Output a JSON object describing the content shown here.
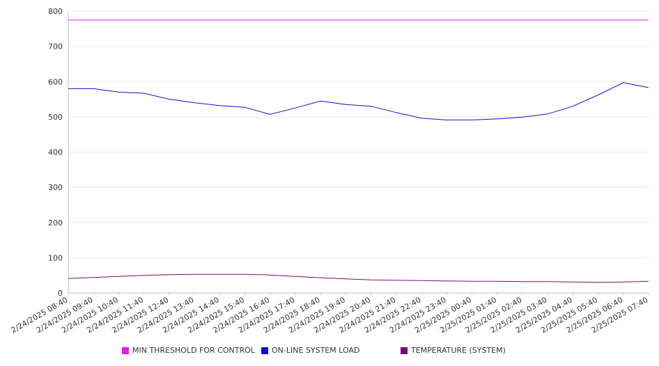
{
  "chart_data": {
    "type": "line",
    "title": "",
    "xlabel": "",
    "ylabel": "",
    "ylim": [
      0,
      800
    ],
    "yticks": [
      "0",
      "100",
      "200",
      "300",
      "400",
      "500",
      "600",
      "700",
      "800"
    ],
    "grid": true,
    "legend_position": "bottom",
    "x": [
      "2/24/2025 08:40",
      "2/24/2025 09:40",
      "2/24/2025 10:40",
      "2/24/2025 11:40",
      "2/24/2025 12:40",
      "2/24/2025 13:40",
      "2/24/2025 14:40",
      "2/24/2025 15:40",
      "2/24/2025 16:40",
      "2/24/2025 17:40",
      "2/24/2025 18:40",
      "2/24/2025 19:40",
      "2/24/2025 20:40",
      "2/24/2025 21:40",
      "2/24/2025 22:40",
      "2/24/2025 23:40",
      "2/25/2025 00:40",
      "2/25/2025 01:40",
      "2/25/2025 02:40",
      "2/25/2025 03:40",
      "2/25/2025 04:40",
      "2/25/2025 05:40",
      "2/25/2025 06:40",
      "2/25/2025 07:40"
    ],
    "series": [
      {
        "name": "MIN THRESHOLD FOR CONTROL",
        "color": "#e81be8",
        "values": [
          775,
          775,
          775,
          775,
          775,
          775,
          775,
          775,
          775,
          775,
          775,
          775,
          775,
          775,
          775,
          775,
          775,
          775,
          775,
          775,
          775,
          775,
          775,
          775
        ]
      },
      {
        "name": "ON-LINE SYSTEM LOAD",
        "color": "#0a12cf",
        "values": [
          580,
          580,
          570,
          567,
          550,
          540,
          532,
          527,
          507,
          525,
          545,
          535,
          530,
          512,
          496,
          491,
          491,
          494,
          499,
          508,
          530,
          562,
          597,
          583
        ]
      },
      {
        "name": "TEMPERATURE (SYSTEM)",
        "color": "#7a0a7a",
        "values": [
          41,
          44,
          47,
          50,
          52,
          53,
          53,
          53,
          51,
          47,
          43,
          40,
          37,
          36,
          35,
          34,
          33,
          33,
          32,
          32,
          31,
          30,
          31,
          33
        ]
      }
    ]
  }
}
